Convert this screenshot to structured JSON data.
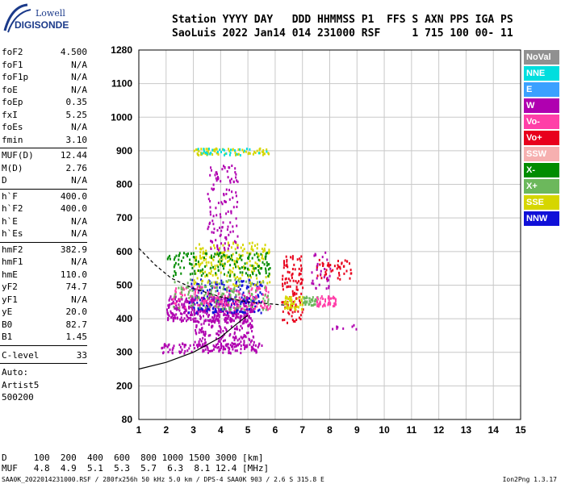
{
  "logo": {
    "line1": "Lowell",
    "line2": "DIGISONDE"
  },
  "header": {
    "line1": "Station YYYY DAY   DDD HHMMSS P1  FFS S AXN PPS IGA PS",
    "line2": "SaoLuis 2022 Jan14 014 231000 RSF     1 715 100 00- 11"
  },
  "params_group1": [
    {
      "label": "foF2",
      "value": "4.500"
    },
    {
      "label": "foF1",
      "value": "N/A"
    },
    {
      "label": "foF1p",
      "value": "N/A"
    },
    {
      "label": "foE",
      "value": "N/A"
    },
    {
      "label": "foEp",
      "value": "0.35"
    },
    {
      "label": "fxI",
      "value": "5.25"
    },
    {
      "label": "foEs",
      "value": "N/A"
    },
    {
      "label": "fmin",
      "value": "3.10"
    }
  ],
  "params_group2": [
    {
      "label": "MUF(D)",
      "value": "12.44"
    },
    {
      "label": "M(D)",
      "value": "2.76"
    },
    {
      "label": "D",
      "value": "N/A"
    }
  ],
  "params_group3": [
    {
      "label": "h`F",
      "value": "400.0"
    },
    {
      "label": "h`F2",
      "value": "400.0"
    },
    {
      "label": "h`E",
      "value": "N/A"
    },
    {
      "label": "h`Es",
      "value": "N/A"
    }
  ],
  "params_group4": [
    {
      "label": "hmF2",
      "value": "382.9"
    },
    {
      "label": "hmF1",
      "value": "N/A"
    },
    {
      "label": "hmE",
      "value": "110.0"
    },
    {
      "label": "yF2",
      "value": "74.7"
    },
    {
      "label": "yF1",
      "value": "N/A"
    },
    {
      "label": "yE",
      "value": "20.0"
    },
    {
      "label": "B0",
      "value": "82.7"
    },
    {
      "label": "B1",
      "value": "1.45"
    }
  ],
  "clevel": {
    "label": "C-level",
    "value": "33"
  },
  "misc": {
    "auto": "Auto:",
    "artist": "Artist5",
    "code": "500200"
  },
  "legend": [
    {
      "label": "NoVal",
      "color": "#909090"
    },
    {
      "label": "NNE",
      "color": "#00dede"
    },
    {
      "label": "E",
      "color": "#3ba0ff"
    },
    {
      "label": "W",
      "color": "#b000b0"
    },
    {
      "label": "Vo-",
      "color": "#ff3fa8"
    },
    {
      "label": "Vo+",
      "color": "#e8001c"
    },
    {
      "label": "SSW",
      "color": "#f6b0b0"
    },
    {
      "label": "X-",
      "color": "#008c00"
    },
    {
      "label": "X+",
      "color": "#6cb85c"
    },
    {
      "label": "SSE",
      "color": "#d6d600"
    },
    {
      "label": "NNW",
      "color": "#1010d8"
    }
  ],
  "muf_table": {
    "line1": "D     100  200  400  600  800 1000 1500 3000 [km]",
    "line2": "MUF   4.8  4.9  5.1  5.3  5.7  6.3  8.1 12.4 [MHz]"
  },
  "footer": {
    "left": "SAA0K_2022014231000.RSF / 280fx256h 50 kHz 5.0 km / DPS-4 SAA0K 903 / 2.6 S 315.8 E",
    "right": "Ion2Png 1.3.17"
  },
  "chart_data": {
    "type": "scatter",
    "xlim": [
      1,
      15
    ],
    "x_ticks": [
      1,
      2,
      3,
      4,
      5,
      6,
      7,
      8,
      9,
      10,
      11,
      12,
      13,
      14,
      15
    ],
    "y_ticks": [
      80,
      200,
      300,
      400,
      500,
      600,
      700,
      800,
      900,
      1000,
      1100,
      1280
    ],
    "y_tick_labels": [
      "80",
      "200",
      "300",
      "400",
      "500",
      "600",
      "700",
      "800",
      "900",
      "1000",
      "1100",
      "1280"
    ],
    "grid": true,
    "trace_clusters": [
      {
        "x": [
          2.0,
          5.2
        ],
        "y": [
          395,
          470
        ],
        "color": "#b000b0",
        "density": 420
      },
      {
        "x": [
          1.8,
          5.5
        ],
        "y": [
          300,
          330
        ],
        "color": "#b000b0",
        "density": 120
      },
      {
        "x": [
          3.0,
          5.2
        ],
        "y": [
          320,
          400
        ],
        "color": "#b000b0",
        "density": 160
      },
      {
        "x": [
          2.8,
          5.5
        ],
        "y": [
          420,
          520
        ],
        "color": "#1010d8",
        "density": 180
      },
      {
        "x": [
          3.0,
          5.8
        ],
        "y": [
          500,
          630
        ],
        "color": "#d6d600",
        "density": 200
      },
      {
        "x": [
          2.0,
          5.8
        ],
        "y": [
          530,
          600
        ],
        "color": "#008c00",
        "density": 150
      },
      {
        "x": [
          2.2,
          5.8
        ],
        "y": [
          430,
          500
        ],
        "color": "#ff3fa8",
        "density": 160
      },
      {
        "x": [
          2.2,
          5.8
        ],
        "y": [
          430,
          520
        ],
        "color": "#6cb85c",
        "density": 120
      },
      {
        "x": [
          3.0,
          5.8
        ],
        "y": [
          890,
          910
        ],
        "color": "#d6d600",
        "density": 70
      },
      {
        "x": [
          3.0,
          5.8
        ],
        "y": [
          890,
          910
        ],
        "color": "#00dede",
        "density": 30
      },
      {
        "x": [
          3.5,
          4.6
        ],
        "y": [
          600,
          860
        ],
        "color": "#b000b0",
        "density": 120
      },
      {
        "x": [
          6.2,
          7.0
        ],
        "y": [
          390,
          590
        ],
        "color": "#e8001c",
        "density": 110
      },
      {
        "x": [
          6.3,
          7.0
        ],
        "y": [
          430,
          470
        ],
        "color": "#d6d600",
        "density": 50
      },
      {
        "x": [
          7.0,
          7.6
        ],
        "y": [
          440,
          470
        ],
        "color": "#6cb85c",
        "density": 40
      },
      {
        "x": [
          7.5,
          8.2
        ],
        "y": [
          440,
          470
        ],
        "color": "#ff3fa8",
        "density": 50
      },
      {
        "x": [
          7.5,
          8.8
        ],
        "y": [
          520,
          580
        ],
        "color": "#e8001c",
        "density": 50
      },
      {
        "x": [
          7.3,
          8.0
        ],
        "y": [
          490,
          600
        ],
        "color": "#b000b0",
        "density": 30
      },
      {
        "x": [
          8.0,
          9.0
        ],
        "y": [
          370,
          390
        ],
        "color": "#b000b0",
        "density": 8
      }
    ],
    "curves": [
      {
        "name": "lower",
        "style": "solid",
        "points": [
          [
            1.0,
            250
          ],
          [
            2.0,
            270
          ],
          [
            3.0,
            300
          ],
          [
            4.0,
            345
          ],
          [
            4.6,
            385
          ],
          [
            5.0,
            410
          ]
        ]
      },
      {
        "name": "upper",
        "style": "dashed",
        "points": [
          [
            1.0,
            610
          ],
          [
            1.6,
            560
          ],
          [
            2.2,
            520
          ],
          [
            3.0,
            490
          ],
          [
            4.0,
            465
          ],
          [
            5.0,
            450
          ],
          [
            6.4,
            440
          ]
        ]
      }
    ]
  }
}
